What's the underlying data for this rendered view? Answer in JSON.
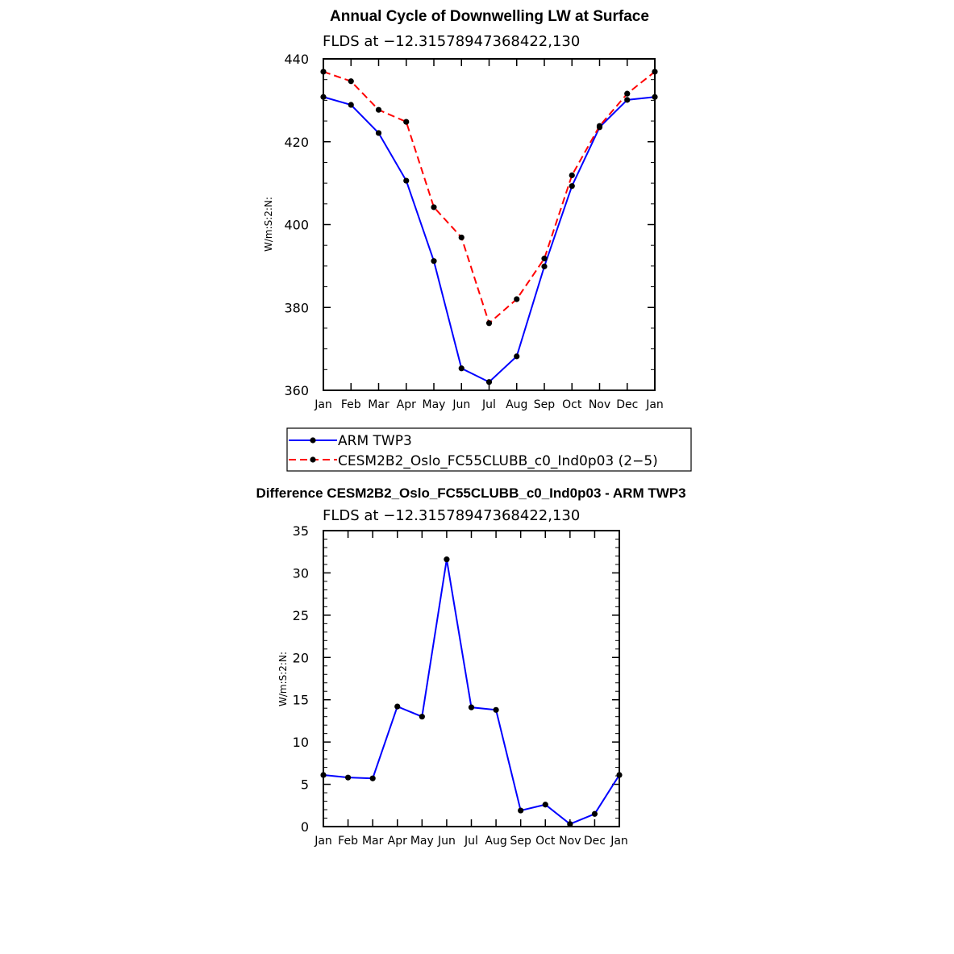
{
  "chart_data": [
    {
      "type": "line",
      "title": "Annual Cycle of Downwelling LW at Surface",
      "subtitle": "FLDS at −12.31578947368422,130",
      "ylabel": "W/m:S:2:N:",
      "xlabel": "",
      "categories": [
        "Jan",
        "Feb",
        "Mar",
        "Apr",
        "May",
        "Jun",
        "Jul",
        "Aug",
        "Sep",
        "Oct",
        "Nov",
        "Dec",
        "Jan"
      ],
      "ylim": [
        360,
        440
      ],
      "yticks": [
        360,
        380,
        400,
        420,
        440
      ],
      "grid": false,
      "legend": "below",
      "series": [
        {
          "name": "ARM TWP3",
          "color": "#0000ff",
          "dash": "solid",
          "values": [
            430.8,
            428.9,
            422.1,
            410.6,
            391.2,
            365.3,
            362.0,
            368.2,
            389.9,
            409.3,
            423.5,
            430.1,
            430.8
          ]
        },
        {
          "name": "CESM2B2_Oslo_FC55CLUBB_c0_Ind0p03 (2−5)",
          "color": "#ff0000",
          "dash": "dashed",
          "values": [
            436.9,
            434.6,
            427.7,
            424.8,
            404.2,
            396.9,
            376.2,
            382.0,
            391.8,
            411.9,
            423.8,
            431.6,
            436.9
          ]
        }
      ]
    },
    {
      "type": "line",
      "title": "Difference CESM2B2_Oslo_FC55CLUBB_c0_Ind0p03 - ARM TWP3",
      "subtitle": "FLDS at −12.31578947368422,130",
      "ylabel": "W/m:S:2:N:",
      "xlabel": "",
      "categories": [
        "Jan",
        "Feb",
        "Mar",
        "Apr",
        "May",
        "Jun",
        "Jul",
        "Aug",
        "Sep",
        "Oct",
        "Nov",
        "Dec",
        "Jan"
      ],
      "ylim": [
        0,
        35
      ],
      "yticks": [
        0,
        5,
        10,
        15,
        20,
        25,
        30,
        35
      ],
      "grid": false,
      "series": [
        {
          "color": "#0000ff",
          "dash": "solid",
          "values": [
            6.1,
            5.8,
            5.7,
            14.2,
            13.0,
            31.6,
            14.1,
            13.8,
            1.9,
            2.6,
            0.3,
            1.5,
            6.1
          ]
        }
      ]
    }
  ]
}
